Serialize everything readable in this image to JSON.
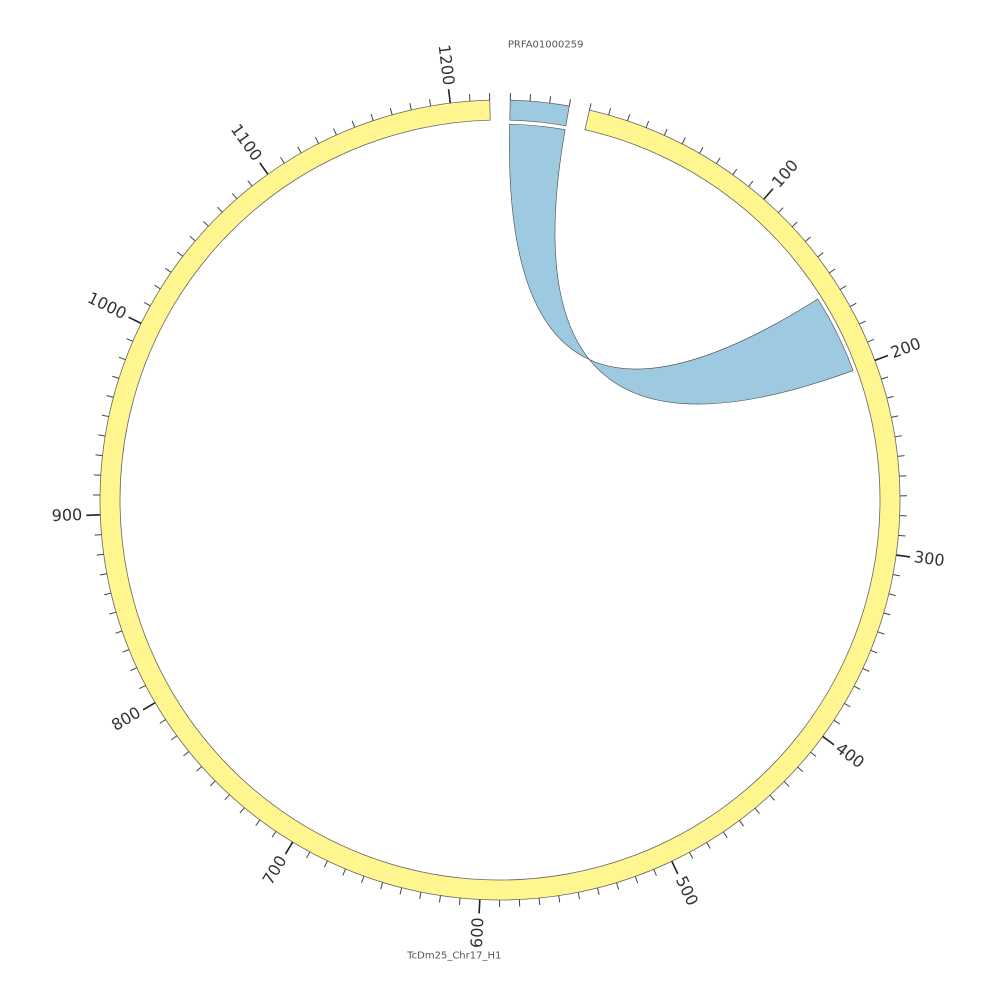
{
  "chart_data": {
    "type": "circos",
    "segments": [
      {
        "name": "PRFA01000259",
        "length": 30,
        "color": "#9ecae1",
        "ticks": []
      },
      {
        "name": "TcDm25_Chr17_H1",
        "length": 1220,
        "color": "#fff68f",
        "ticks": [
          100,
          200,
          300,
          400,
          500,
          600,
          700,
          800,
          900,
          1000,
          1100,
          1200
        ]
      }
    ],
    "minor_tick_interval": 10,
    "links": [
      {
        "source": 0,
        "source_range": [
          0,
          30
        ],
        "target": 1,
        "target_range": [
          201,
          158
        ],
        "color": "#9ecae1"
      }
    ]
  }
}
